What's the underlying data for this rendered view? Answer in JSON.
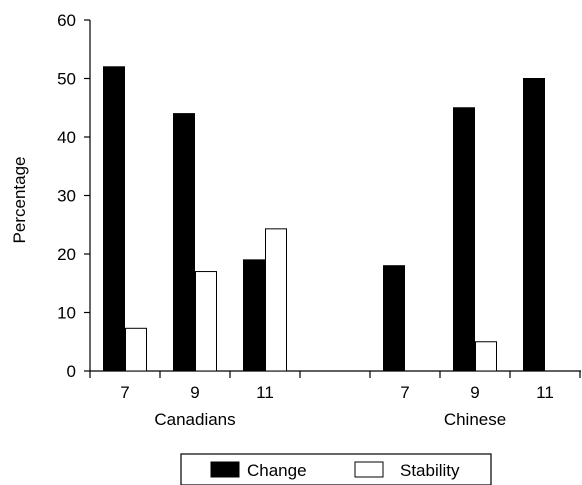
{
  "chart_data": {
    "type": "bar",
    "title": "",
    "xlabel": "",
    "ylabel": "Percentage",
    "ylim": [
      0,
      60
    ],
    "yticks": [
      0,
      10,
      20,
      30,
      40,
      50,
      60
    ],
    "grid": false,
    "legend_position": "bottom",
    "groups": [
      {
        "label": "Canadians",
        "categories": [
          "7",
          "9",
          "11"
        ]
      },
      {
        "label": "Chinese",
        "categories": [
          "7",
          "9",
          "11"
        ]
      }
    ],
    "series": [
      {
        "name": "Change",
        "color": "#000000",
        "values": [
          [
            52,
            44,
            19
          ],
          [
            18,
            45,
            50
          ]
        ]
      },
      {
        "name": "Stability",
        "color": "#ffffff",
        "values": [
          [
            7.3,
            17,
            24.3
          ],
          [
            0,
            5,
            0
          ]
        ]
      }
    ]
  }
}
